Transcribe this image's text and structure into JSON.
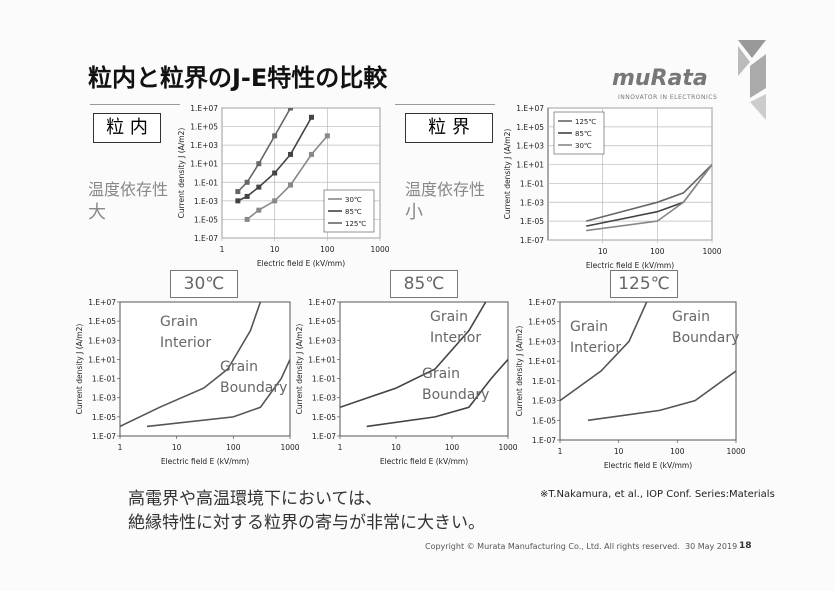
{
  "slide": {
    "title": "粒内と粒界のJ-E特性の比較",
    "logo": "muRata",
    "tagline": "INNOVATOR IN ELECTRONICS",
    "interior_box": "粒 内",
    "boundary_box": "粒 界",
    "dependence_left": "温度依存性",
    "dependence_left_level": "大",
    "dependence_right": "温度依存性",
    "dependence_right_level": "小",
    "conclusion": [
      "高電界や高温環境下においては、",
      "絶縁特性に対する粒界の寄与が非常に大きい。"
    ],
    "reference": "※T.Nakamura, et al., IOP Conf. Series:Materials",
    "copyright": "Copyright © Murata Manufacturing Co., Ltd. All rights reserved.",
    "date": "30 May 2019",
    "page": "18"
  },
  "chart_data": [
    {
      "type": "line",
      "x_label": "Electric field E (kV/mm)",
      "y_label": "Current density J (A/m2)",
      "xscale": "log",
      "yscale": "log",
      "xlim": [
        1,
        1000
      ],
      "ylim": [
        1e-07,
        10000000.0
      ],
      "xticks": [
        1,
        10,
        100,
        1000
      ],
      "yticks": [
        {
          "value": 1e-07,
          "label": "1.E-07"
        },
        {
          "value": 1e-05,
          "label": "1.E-05"
        },
        {
          "value": 0.001,
          "label": "1.E-03"
        },
        {
          "value": 0.1,
          "label": "1.E-01"
        },
        {
          "value": 10,
          "label": "1.E+01"
        },
        {
          "value": 1000,
          "label": "1.E+03"
        },
        {
          "value": 100000,
          "label": "1.E+05"
        },
        {
          "value": 10000000,
          "label": "1.E+07"
        }
      ],
      "grid": true,
      "markers": true,
      "legend": "lower right",
      "series": [
        {
          "name": "30℃",
          "color": "#888888",
          "x": [
            3,
            5,
            10,
            20,
            50,
            100
          ],
          "values": [
            1e-05,
            0.0001,
            0.001,
            0.05,
            100,
            10000
          ]
        },
        {
          "name": "85℃",
          "color": "#444444",
          "x": [
            2,
            3,
            5,
            10,
            20,
            50
          ],
          "values": [
            0.001,
            0.003,
            0.03,
            1,
            100,
            1000000
          ]
        },
        {
          "name": "125℃",
          "color": "#666666",
          "x": [
            2,
            3,
            5,
            10,
            20
          ],
          "values": [
            0.01,
            0.1,
            10,
            10000,
            10000000
          ]
        }
      ]
    },
    {
      "type": "line",
      "x_label": "Electric field E (kV/mm)",
      "y_label": "Current density J (A/m2)",
      "xscale": "log",
      "yscale": "log",
      "xlim": [
        1,
        1000
      ],
      "ylim": [
        1e-07,
        10000000.0
      ],
      "xticks": [
        10,
        100,
        1000
      ],
      "yticks": [
        {
          "value": 1e-07,
          "label": "1.E-07"
        },
        {
          "value": 1e-05,
          "label": "1.E-05"
        },
        {
          "value": 0.001,
          "label": "1.E-03"
        },
        {
          "value": 0.1,
          "label": "1.E-01"
        },
        {
          "value": 10,
          "label": "1.E+01"
        },
        {
          "value": 1000,
          "label": "1.E+03"
        },
        {
          "value": 100000,
          "label": "1.E+05"
        },
        {
          "value": 10000000,
          "label": "1.E+07"
        }
      ],
      "grid": true,
      "markers": false,
      "legend": "upper left",
      "series": [
        {
          "name": "125℃",
          "color": "#666666",
          "x": [
            5,
            100,
            300,
            1000
          ],
          "values": [
            1e-05,
            0.001,
            0.01,
            10
          ]
        },
        {
          "name": "85℃",
          "color": "#444444",
          "x": [
            5,
            100,
            300,
            1000
          ],
          "values": [
            3e-06,
            0.0001,
            0.001,
            10
          ]
        },
        {
          "name": "30℃",
          "color": "#888888",
          "x": [
            5,
            100,
            300,
            1000
          ],
          "values": [
            1e-06,
            1e-05,
            0.001,
            10
          ]
        }
      ]
    },
    {
      "type": "line",
      "title": "30℃",
      "x_label": "Electric field E (kV/mm)",
      "y_label": "Current density J (A/m2)",
      "xscale": "log",
      "yscale": "log",
      "xlim": [
        1,
        1000
      ],
      "ylim": [
        1e-07,
        10000000.0
      ],
      "xticks": [
        1,
        10,
        100,
        1000
      ],
      "yticks": [
        {
          "value": 1e-07,
          "label": "1.E-07"
        },
        {
          "value": 1e-05,
          "label": "1.E-05"
        },
        {
          "value": 0.001,
          "label": "1.E-03"
        },
        {
          "value": 0.1,
          "label": "1.E-01"
        },
        {
          "value": 10,
          "label": "1.E+01"
        },
        {
          "value": 1000,
          "label": "1.E+03"
        },
        {
          "value": 100000,
          "label": "1.E+05"
        },
        {
          "value": 10000000,
          "label": "1.E+07"
        }
      ],
      "grid": false,
      "markers": false,
      "legend": "inline",
      "series": [
        {
          "name": "Grain Interior",
          "color": "#555555",
          "x": [
            1,
            5,
            30,
            80,
            200,
            300
          ],
          "values": [
            1e-06,
            0.0001,
            0.01,
            1,
            10000,
            10000000
          ]
        },
        {
          "name": "Grain Boundary",
          "color": "#555555",
          "x": [
            3,
            100,
            300,
            700,
            1000
          ],
          "values": [
            1e-06,
            1e-05,
            0.0001,
            0.1,
            10
          ]
        }
      ]
    },
    {
      "type": "line",
      "title": "85℃",
      "x_label": "Electric field E (kV/mm)",
      "y_label": "Current density J (A/m2)",
      "xscale": "log",
      "yscale": "log",
      "xlim": [
        1,
        1000
      ],
      "ylim": [
        1e-07,
        10000000.0
      ],
      "xticks": [
        1,
        10,
        100,
        1000
      ],
      "yticks": [
        {
          "value": 1e-07,
          "label": "1.E-07"
        },
        {
          "value": 1e-05,
          "label": "1.E-05"
        },
        {
          "value": 0.001,
          "label": "1.E-03"
        },
        {
          "value": 0.1,
          "label": "1.E-01"
        },
        {
          "value": 10,
          "label": "1.E+01"
        },
        {
          "value": 1000,
          "label": "1.E+03"
        },
        {
          "value": 100000,
          "label": "1.E+05"
        },
        {
          "value": 10000000,
          "label": "1.E+07"
        }
      ],
      "grid": false,
      "markers": false,
      "legend": "inline",
      "series": [
        {
          "name": "Grain Interior",
          "color": "#444444",
          "x": [
            1,
            10,
            50,
            200,
            400
          ],
          "values": [
            0.0001,
            0.01,
            1,
            10000,
            10000000
          ]
        },
        {
          "name": "Grain Boundary",
          "color": "#444444",
          "x": [
            3,
            50,
            200,
            500,
            1000
          ],
          "values": [
            1e-06,
            1e-05,
            0.0001,
            0.1,
            10
          ]
        }
      ]
    },
    {
      "type": "line",
      "title": "125℃",
      "x_label": "Electric field E (kV/mm)",
      "y_label": "Current density J (A/m2)",
      "xscale": "log",
      "yscale": "log",
      "xlim": [
        1,
        1000
      ],
      "ylim": [
        1e-07,
        10000000.0
      ],
      "xticks": [
        1,
        10,
        100,
        1000
      ],
      "yticks": [
        {
          "value": 1e-07,
          "label": "1.E-07"
        },
        {
          "value": 1e-05,
          "label": "1.E-05"
        },
        {
          "value": 0.001,
          "label": "1.E-03"
        },
        {
          "value": 0.1,
          "label": "1.E-01"
        },
        {
          "value": 10,
          "label": "1.E+01"
        },
        {
          "value": 1000,
          "label": "1.E+03"
        },
        {
          "value": 100000,
          "label": "1.E+05"
        },
        {
          "value": 10000000,
          "label": "1.E+07"
        }
      ],
      "grid": false,
      "markers": false,
      "legend": "inline",
      "series": [
        {
          "name": "Grain Interior",
          "color": "#555555",
          "x": [
            1,
            5,
            15,
            30
          ],
          "values": [
            0.001,
            1,
            1000,
            10000000
          ]
        },
        {
          "name": "Grain Boundary",
          "color": "#555555",
          "x": [
            3,
            50,
            200,
            1000
          ],
          "values": [
            1e-05,
            0.0001,
            0.001,
            1
          ]
        }
      ]
    }
  ]
}
